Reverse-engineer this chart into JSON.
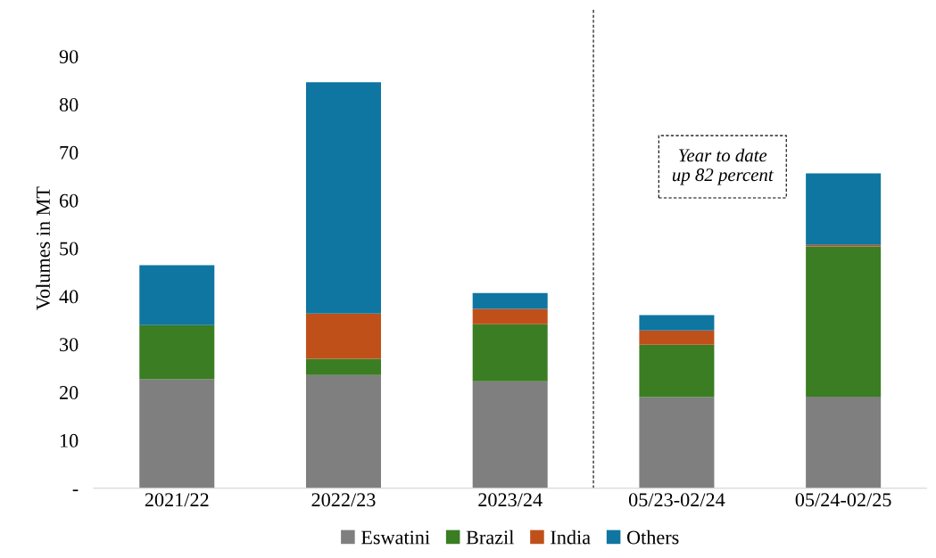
{
  "chart_data": {
    "type": "bar",
    "stacked": true,
    "ylabel": "Volumes in MT",
    "categories": [
      "2021/22",
      "2022/23",
      "2023/24",
      "05/23-02/24",
      "05/24-02/25"
    ],
    "series": [
      {
        "name": "Eswatini",
        "color": "#7f7f7f",
        "values": [
          22.7,
          23.6,
          22.3,
          19.0,
          19.1
        ]
      },
      {
        "name": "Brazil",
        "color": "#3a7d22",
        "values": [
          11.3,
          3.4,
          11.9,
          10.9,
          31.3
        ]
      },
      {
        "name": "India",
        "color": "#c0501a",
        "values": [
          0,
          9.4,
          3.2,
          3.0,
          0.3
        ]
      },
      {
        "name": "Others",
        "color": "#0e76a0",
        "values": [
          12.5,
          48.2,
          3.3,
          3.2,
          14.9
        ]
      }
    ],
    "ylim": [
      0,
      100
    ],
    "yticks": [
      {
        "value": 0,
        "label": "-"
      },
      10,
      20,
      30,
      40,
      50,
      60,
      70,
      80,
      90
    ],
    "annotations": [
      "Year to date\nup 82 percent"
    ],
    "legend": "bottom",
    "grid": false
  }
}
